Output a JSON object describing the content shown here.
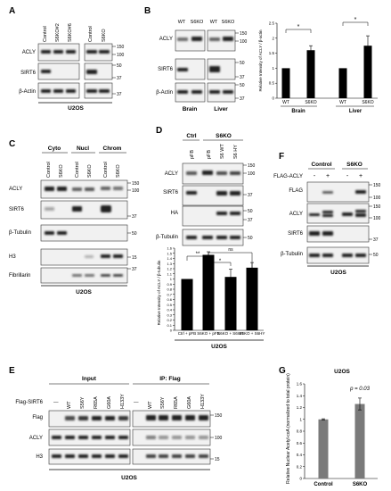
{
  "panels": {
    "A": {
      "letter": "A",
      "samples": [
        "Control",
        "S6KO#2",
        "S6KO#6",
        "Control",
        "S6KO"
      ],
      "blots": [
        "ACLY",
        "SIRT6",
        "β-Actin"
      ],
      "markers": [
        "150",
        "100",
        "50",
        "37",
        "37"
      ],
      "cell_line": "U2OS"
    },
    "B": {
      "letter": "B",
      "samples": [
        "WT",
        "S6KO",
        "WT",
        "S6KO"
      ],
      "blots": [
        "ACLY",
        "SIRT6",
        "β-Actin"
      ],
      "markers": [
        "150",
        "100",
        "50",
        "37",
        "50",
        "37"
      ],
      "tissues": [
        "Brain",
        "Liver"
      ]
    },
    "B_chart": {
      "ylabel": "Relative Intensity of ACLY / β-actin",
      "xlabels": [
        "WT",
        "S6KO",
        "WT",
        "S6KO"
      ],
      "groups": [
        "Brain",
        "Liver"
      ],
      "yticks": [
        "0",
        "0.5",
        "1",
        "1.5",
        "2",
        "2.5"
      ],
      "sig": [
        "*",
        "*"
      ]
    },
    "C": {
      "letter": "C",
      "fractions": [
        "Cyto",
        "Nucl",
        "Chrom"
      ],
      "samples": [
        "Control",
        "S6KO",
        "Control",
        "S6KO",
        "Control",
        "S6KO"
      ],
      "blots": [
        "ACLY",
        "SIRT6",
        "β-Tubulin",
        "H3",
        "Fibrillarin"
      ],
      "markers": [
        "150",
        "100",
        "37",
        "50",
        "15",
        "37"
      ],
      "cell_line": "U2OS"
    },
    "D": {
      "letter": "D",
      "groups": [
        "Ctrl",
        "S6KO"
      ],
      "samples": [
        "pFB",
        "pFB",
        "S6 WT",
        "S6 HY"
      ],
      "blots": [
        "ACLY",
        "SIRT6",
        "HA",
        "β-Tubulin"
      ],
      "markers": [
        "150",
        "100",
        "37",
        "50",
        "37",
        "50"
      ],
      "cell_line": "U2OS"
    },
    "D_chart": {
      "ylabel": "Relative Intensity of ACLY / β-tubulin",
      "xlabels": [
        "Ctrl + pFB",
        "S6KO + pFB",
        "S6KO + S6WT",
        "S6KO + S6HY"
      ],
      "yticks": [
        "0",
        "0.1",
        "0.2",
        "0.3",
        "0.4",
        "0.5",
        "0.6",
        "0.7",
        "0.8",
        "0.9",
        "1",
        "1.1",
        "1.2",
        "1.3",
        "1.4",
        "1.5",
        "1.6"
      ],
      "sig": [
        "**",
        "*",
        "ns"
      ]
    },
    "E": {
      "letter": "E",
      "headers": [
        "Input",
        "IP: Flag"
      ],
      "row_label": "Flag-SIRT6",
      "samples": [
        "—",
        "WT",
        "S56Y",
        "R65A",
        "G60A",
        "H133Y"
      ],
      "blots": [
        "Flag",
        "ACLY",
        "H3"
      ],
      "markers": [
        "150",
        "100",
        "15"
      ],
      "cell_line": "U2OS"
    },
    "F": {
      "letter": "F",
      "groups": [
        "Control",
        "S6KO"
      ],
      "row_label": "FLAG-ACLY",
      "signs": [
        "-",
        "+",
        "-",
        "+"
      ],
      "blots": [
        "FLAG",
        "ACLY",
        "SIRT6",
        "β-Tubulin"
      ],
      "markers": [
        "150",
        "100",
        "150",
        "100",
        "37",
        "50"
      ],
      "cell_line": "U2OS"
    },
    "G": {
      "letter": "G",
      "title": "U2OS",
      "ylabel": "Relative Nuclear Acetyl-coA (normalized to total protein)",
      "xlabels": [
        "Control",
        "S6KO"
      ],
      "yticks": [
        "0",
        "0.2",
        "0.4",
        "0.6",
        "0.8",
        "1",
        "1.2",
        "1.4",
        "1.6"
      ],
      "pvalue": "p = 0.03"
    }
  },
  "chart_data": [
    {
      "type": "bar",
      "panel": "B",
      "categories": [
        "WT",
        "S6KO",
        "WT",
        "S6KO"
      ],
      "groups": [
        "Brain",
        "Brain",
        "Liver",
        "Liver"
      ],
      "values": [
        1.0,
        1.6,
        1.0,
        1.75
      ],
      "errors": [
        0,
        0.15,
        0,
        0.33
      ],
      "ylabel": "Relative Intensity of ACLY / β-actin",
      "ylim": [
        0,
        2.5
      ]
    },
    {
      "type": "bar",
      "panel": "D",
      "categories": [
        "Ctrl + pFB",
        "S6KO + pFB",
        "S6KO + S6WT",
        "S6KO + S6HY"
      ],
      "values": [
        1.0,
        1.47,
        1.04,
        1.22
      ],
      "errors": [
        0,
        0.06,
        0.15,
        0.1
      ],
      "ylabel": "Relative Intensity of ACLY / β-tubulin",
      "ylim": [
        0,
        1.6
      ]
    },
    {
      "type": "bar",
      "panel": "G",
      "title": "U2OS",
      "categories": [
        "Control",
        "S6KO"
      ],
      "values": [
        1.0,
        1.26
      ],
      "errors": [
        0.01,
        0.1
      ],
      "ylabel": "Relative Nuclear Acetyl-coA (normalized to total protein)",
      "ylim": [
        0,
        1.6
      ]
    }
  ]
}
